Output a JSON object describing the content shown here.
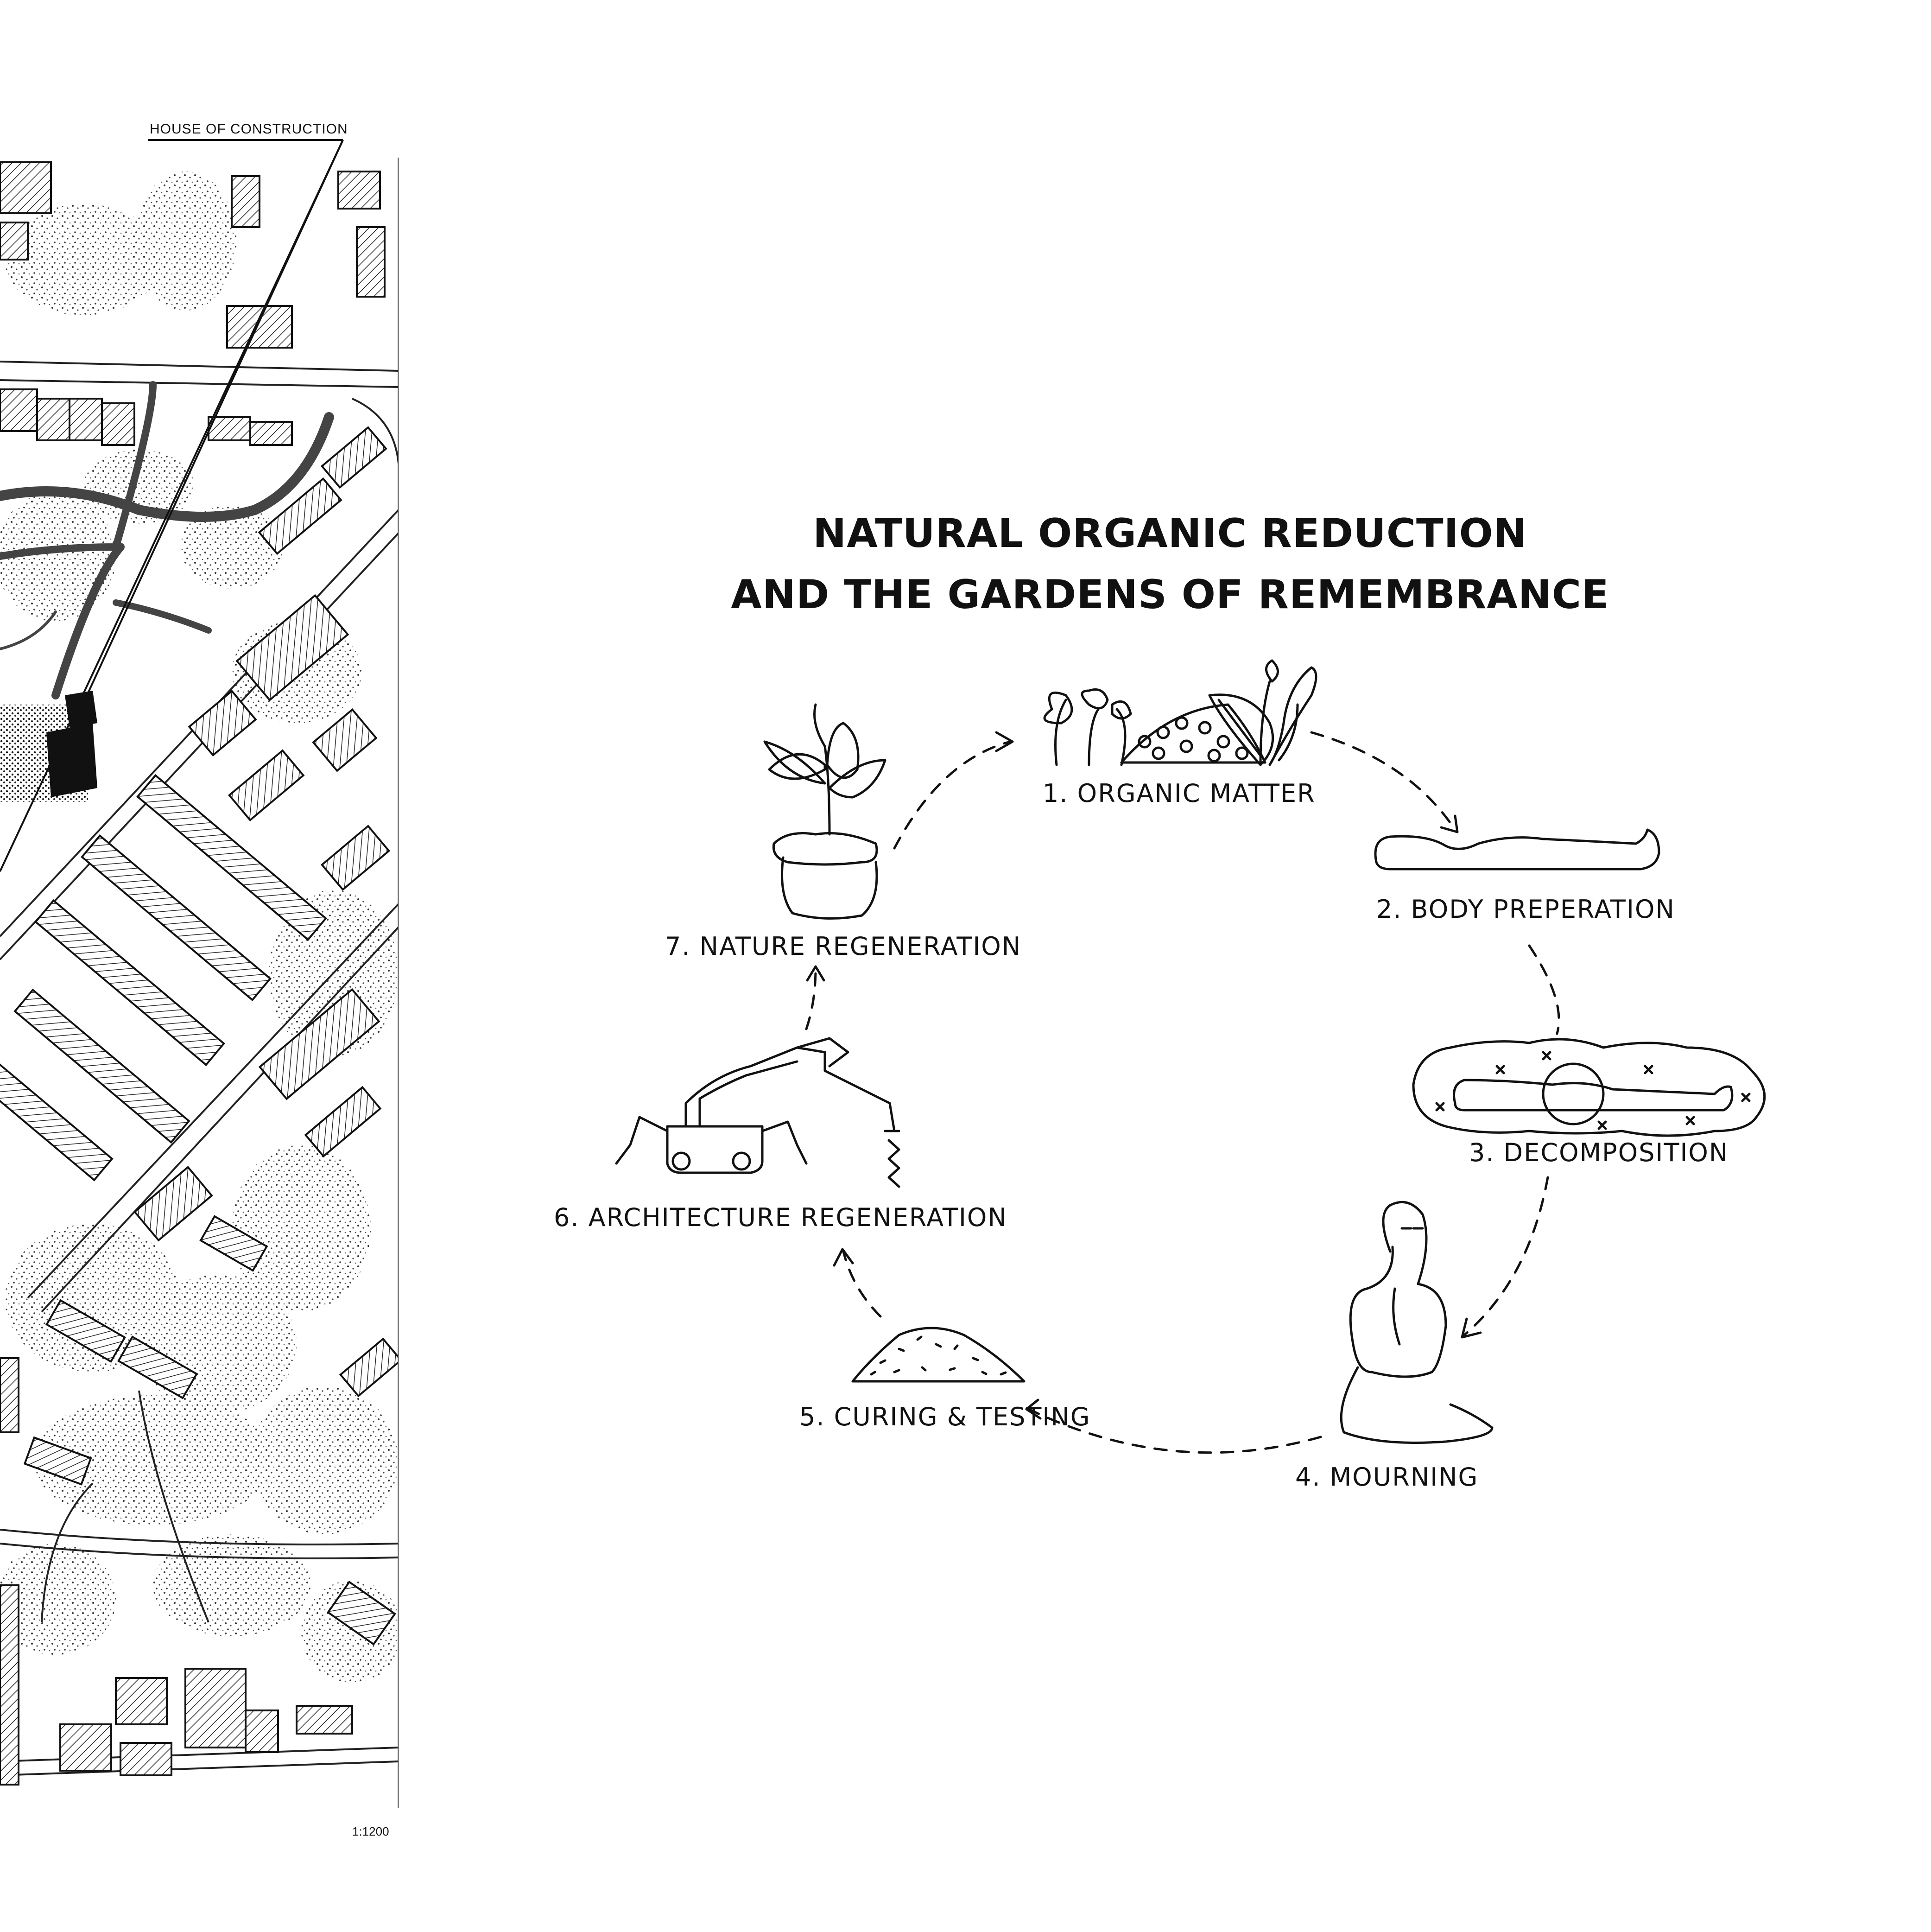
{
  "map": {
    "site_label": "HOUSE OF CONSTRUCTION",
    "scale": "1:1200"
  },
  "title": {
    "line1": "NATURAL ORGANIC REDUCTION",
    "line2": "AND THE GARDENS OF REMEMBRANCE"
  },
  "steps": [
    {
      "label": "1. ORGANIC MATTER",
      "icon": "flowers-plants-icon"
    },
    {
      "label": "2. BODY PREPERATION",
      "icon": "body-outline-icon"
    },
    {
      "label": "3. DECOMPOSITION",
      "icon": "decomposing-body-icon"
    },
    {
      "label": "4.  MOURNING",
      "icon": "meditating-person-icon"
    },
    {
      "label": "5. CURING & TESTING",
      "icon": "soil-mound-icon"
    },
    {
      "label": "6. ARCHITECTURE REGENERATION",
      "icon": "robotic-printer-icon"
    },
    {
      "label": "7. NATURE REGENERATION",
      "icon": "potted-plant-icon"
    }
  ]
}
